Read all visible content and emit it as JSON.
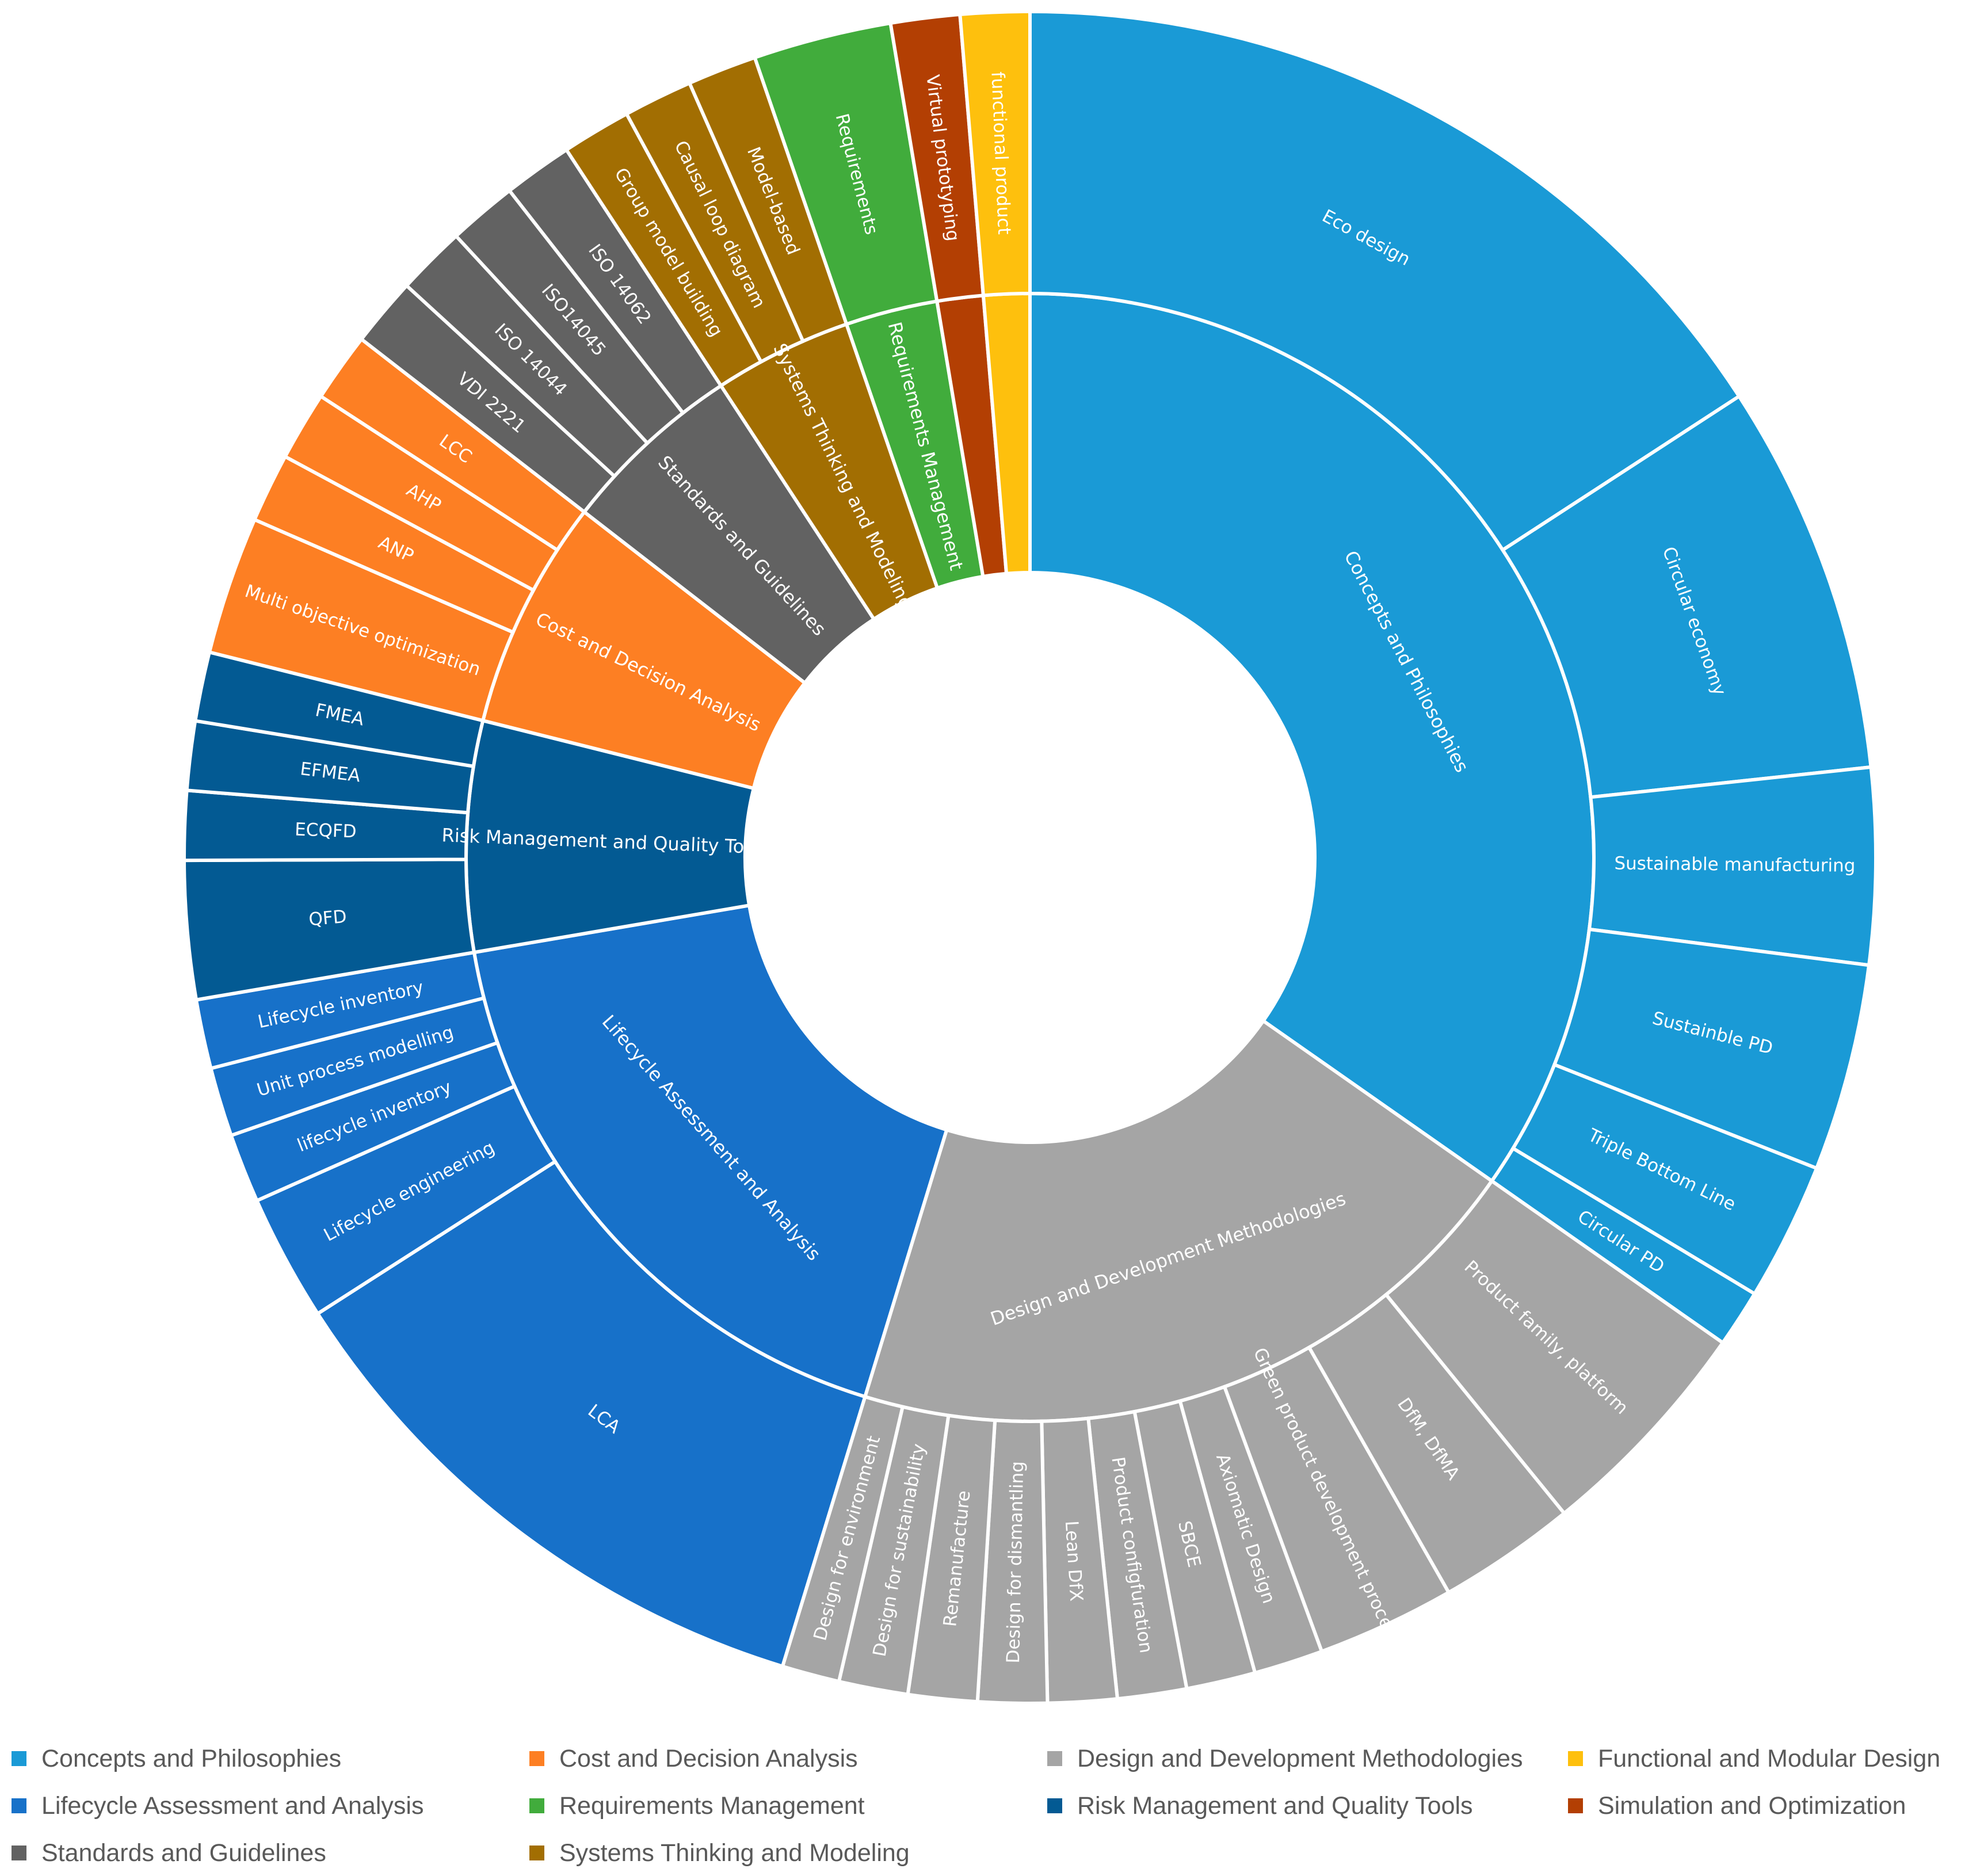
{
  "chart_data": {
    "type": "sunburst",
    "title": "",
    "groups": [
      {
        "name": "Concepts and Philosophies",
        "color": "#1a9ad6",
        "children": [
          {
            "name": "Eco design",
            "value": 72
          },
          {
            "name": "Circular economy",
            "value": 34
          },
          {
            "name": "Sustainable manufacturing",
            "value": 17
          },
          {
            "name": "Sustainble PD",
            "value": 18
          },
          {
            "name": "Triple Bottom Line",
            "value": 12
          },
          {
            "name": "Circular PD",
            "value": 5
          }
        ]
      },
      {
        "name": "Design and Development Methodologies",
        "color": "#a5a5a5",
        "children": [
          {
            "name": "Product family, platform",
            "value": 20
          },
          {
            "name": "DfM, DfMA",
            "value": 12
          },
          {
            "name": "Green product development process",
            "value": 12
          },
          {
            "name": "Axiomatic Design",
            "value": 6
          },
          {
            "name": "SBCE",
            "value": 6
          },
          {
            "name": "Product configfuration",
            "value": 6
          },
          {
            "name": "Lean DfX",
            "value": 6
          },
          {
            "name": "Design for dismantling",
            "value": 6
          },
          {
            "name": "Remanufacture",
            "value": 6
          },
          {
            "name": "Design  for sustainability",
            "value": 6
          },
          {
            "name": "Design for environment",
            "value": 5
          }
        ]
      },
      {
        "name": "Lifecycle Assessment and Analysis",
        "color": "#1771c9",
        "children": [
          {
            "name": "LCA",
            "value": 51
          },
          {
            "name": "Lifecycle engineering",
            "value": 11
          },
          {
            "name": "lifecycle inventory",
            "value": 6
          },
          {
            "name": "Unit process modelling",
            "value": 6
          },
          {
            "name": "Lifecycle inventory",
            "value": 6
          }
        ]
      },
      {
        "name": "Risk Management and Quality Tools",
        "color": "#035a93",
        "children": [
          {
            "name": "QFD",
            "value": 12
          },
          {
            "name": "ECQFD",
            "value": 6
          },
          {
            "name": "EFMEA",
            "value": 6
          },
          {
            "name": "FMEA",
            "value": 6
          }
        ]
      },
      {
        "name": "Cost and Decision Analysis",
        "color": "#fd7f23",
        "children": [
          {
            "name": "Multi objective optimization",
            "value": 12
          },
          {
            "name": "ANP",
            "value": 6
          },
          {
            "name": "AHP",
            "value": 6
          },
          {
            "name": "LCC",
            "value": 6
          }
        ]
      },
      {
        "name": "Standards and Guidelines",
        "color": "#626262",
        "children": [
          {
            "name": "VDI 2221",
            "value": 6
          },
          {
            "name": "ISO 14044",
            "value": 6
          },
          {
            "name": "ISO14045",
            "value": 6
          },
          {
            "name": "ISO 14062",
            "value": 6
          }
        ]
      },
      {
        "name": "Systems Thinking and Modeling",
        "color": "#a26e02",
        "children": [
          {
            "name": "Group model building",
            "value": 6
          },
          {
            "name": "Causal loop diagram",
            "value": 6
          },
          {
            "name": "Model-based",
            "value": 6
          }
        ]
      },
      {
        "name": "Requirements Management",
        "color": "#41ac3c",
        "children": [
          {
            "name": "Requirements",
            "value": 12
          }
        ]
      },
      {
        "name": "Simulation and Optimization",
        "color": "#b33f03",
        "children": [
          {
            "name": "Virtual prototyping",
            "value": 6
          }
        ]
      },
      {
        "name": "Functional and Modular Design",
        "color": "#fec00d",
        "children": [
          {
            "name": "functional product",
            "value": 6
          }
        ]
      }
    ],
    "inner_labels": {
      "Concepts and Philosophies": "Concepts and Philosophies",
      "Design and Development Methodologies": "Design and Development Methodologies",
      "Lifecycle Assessment and Analysis": "Lifecycle Assessment and Analysis",
      "Risk Management and Quality Tools": "Risk Management and Quality Tools",
      "Cost and Decision Analysis": "Cost and Decision Analysis",
      "Standards and Guidelines": "Standards and Guidelines",
      "Systems Thinking and Modeling": "Systems Thinking and Modeling",
      "Requirements Management": "Requirements Management",
      "Simulation and Optimization": "",
      "Functional and Modular Design": ""
    },
    "legend": [
      {
        "label": "Concepts and Philosophies",
        "color": "#1a9ad6"
      },
      {
        "label": "Cost and Decision Analysis",
        "color": "#fd7f23"
      },
      {
        "label": "Design and Development Methodologies",
        "color": "#a5a5a5"
      },
      {
        "label": "Functional and Modular Design",
        "color": "#fec00d"
      },
      {
        "label": "Lifecycle Assessment and Analysis",
        "color": "#1771c9"
      },
      {
        "label": "Requirements Management",
        "color": "#41ac3c"
      },
      {
        "label": "Risk Management and Quality Tools",
        "color": "#035a93"
      },
      {
        "label": "Simulation and Optimization",
        "color": "#b33f03"
      },
      {
        "label": "Standards and Guidelines",
        "color": "#626262"
      },
      {
        "label": "Systems Thinking and Modeling",
        "color": "#a26e02"
      }
    ],
    "legend_position": "bottom"
  }
}
